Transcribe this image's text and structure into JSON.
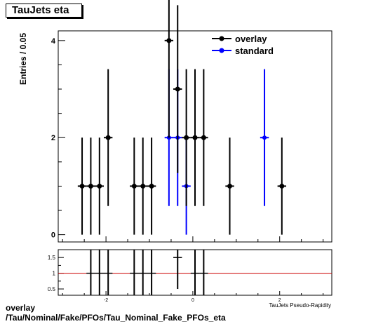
{
  "title": "TauJets eta",
  "footer": {
    "line1": "overlay",
    "line2": "/Tau/Nominal/Fake/PFOs/Tau_Nominal_Fake_PFOs_eta"
  },
  "colors": {
    "overlay": "#000000",
    "standard": "#0000ff",
    "ratio_line": "#cc0000"
  },
  "chart_data": [
    {
      "type": "scatter",
      "ylabel": "Entries / 0.05",
      "xlabel": "TauJets Pseudo-Rapidity",
      "xlim": [
        -3.1,
        3.2
      ],
      "ylim": [
        -0.15,
        4.2
      ],
      "yticks": [
        0,
        2,
        4
      ],
      "legend_position": "top-right",
      "series": [
        {
          "name": "overlay",
          "points": [
            {
              "x": -2.55,
              "y": 1,
              "err": 1
            },
            {
              "x": -2.35,
              "y": 1,
              "err": 1
            },
            {
              "x": -2.15,
              "y": 1,
              "err": 1
            },
            {
              "x": -1.95,
              "y": 2,
              "err": 1.41
            },
            {
              "x": -1.35,
              "y": 1,
              "err": 1
            },
            {
              "x": -1.15,
              "y": 1,
              "err": 1
            },
            {
              "x": -0.95,
              "y": 1,
              "err": 1
            },
            {
              "x": -0.55,
              "y": 4,
              "err": 2
            },
            {
              "x": -0.35,
              "y": 3,
              "err": 1.73
            },
            {
              "x": -0.15,
              "y": 2,
              "err": 1.41
            },
            {
              "x": 0.05,
              "y": 2,
              "err": 1.41
            },
            {
              "x": 0.25,
              "y": 2,
              "err": 1.41
            },
            {
              "x": 0.85,
              "y": 1,
              "err": 1
            },
            {
              "x": 2.05,
              "y": 1,
              "err": 1
            }
          ]
        },
        {
          "name": "standard",
          "points": [
            {
              "x": -0.55,
              "y": 2,
              "err": 1.41
            },
            {
              "x": -0.35,
              "y": 2,
              "err": 1.41
            },
            {
              "x": -0.15,
              "y": 1,
              "err": 1
            },
            {
              "x": 1.65,
              "y": 2,
              "err": 1.41
            }
          ]
        }
      ]
    },
    {
      "type": "scatter",
      "xlabel": "TauJets Pseudo-Rapidity",
      "xlim": [
        -3.1,
        3.2
      ],
      "ylim": [
        0.3,
        1.75
      ],
      "yticks": [
        0.5,
        1,
        1.5
      ],
      "xticks": [
        -2,
        0,
        2
      ],
      "reference_line": 1,
      "series": [
        {
          "name": "ratio",
          "points": [
            {
              "x": -2.35,
              "y": 1,
              "err": 1
            },
            {
              "x": -2.15,
              "y": 1,
              "err": 1
            },
            {
              "x": -1.95,
              "y": 1,
              "err": 1
            },
            {
              "x": -1.35,
              "y": 1,
              "err": 1
            },
            {
              "x": -1.15,
              "y": 1,
              "err": 1
            },
            {
              "x": -0.95,
              "y": 1,
              "err": 1
            },
            {
              "x": -0.35,
              "y": 1.5,
              "err": 1
            },
            {
              "x": 0.05,
              "y": 1,
              "err": 1
            },
            {
              "x": 0.25,
              "y": 1,
              "err": 1
            }
          ]
        }
      ]
    }
  ]
}
